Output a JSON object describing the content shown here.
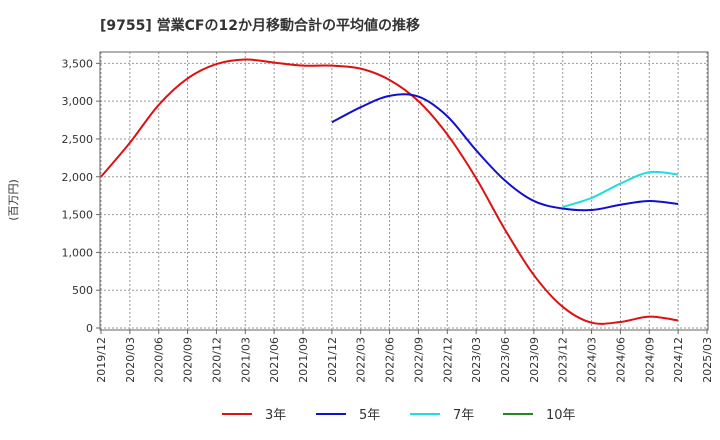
{
  "chart_data": {
    "type": "line",
    "title": "[9755]  営業CFの12か月移動合計の平均値の推移",
    "ylabel": "(百万円)",
    "xlabel": "",
    "ylim": [
      0,
      3650
    ],
    "yticks": [
      0,
      500,
      1000,
      1500,
      2000,
      2500,
      3000,
      3500
    ],
    "ytick_labels": [
      "0",
      "500",
      "1,000",
      "1,500",
      "2,000",
      "2,500",
      "3,000",
      "3,500"
    ],
    "x_categories": [
      "2019/12",
      "2020/03",
      "2020/06",
      "2020/09",
      "2020/12",
      "2021/03",
      "2021/06",
      "2021/09",
      "2021/12",
      "2022/03",
      "2022/06",
      "2022/09",
      "2022/12",
      "2023/03",
      "2023/06",
      "2023/09",
      "2023/12",
      "2024/03",
      "2024/06",
      "2024/09",
      "2024/12",
      "2025/03"
    ],
    "grid": true,
    "legend_position": "bottom",
    "series": [
      {
        "name": "3年",
        "color": "#dd1111",
        "x": [
          "2019/12",
          "2020/03",
          "2020/06",
          "2020/09",
          "2020/12",
          "2021/03",
          "2021/06",
          "2021/09",
          "2021/12",
          "2022/03",
          "2022/06",
          "2022/09",
          "2022/12",
          "2023/03",
          "2023/06",
          "2023/09",
          "2023/12",
          "2024/03",
          "2024/06",
          "2024/09",
          "2024/12"
        ],
        "values": [
          2000,
          2450,
          2950,
          3300,
          3490,
          3550,
          3510,
          3470,
          3470,
          3430,
          3280,
          3000,
          2560,
          1980,
          1300,
          700,
          280,
          70,
          80,
          150,
          100
        ]
      },
      {
        "name": "5年",
        "color": "#1111cc",
        "x": [
          "2021/12",
          "2022/03",
          "2022/06",
          "2022/09",
          "2022/12",
          "2023/03",
          "2023/06",
          "2023/09",
          "2023/12",
          "2024/03",
          "2024/06",
          "2024/09",
          "2024/12"
        ],
        "values": [
          2720,
          2920,
          3070,
          3060,
          2800,
          2350,
          1950,
          1680,
          1580,
          1560,
          1630,
          1680,
          1640
        ]
      },
      {
        "name": "7年",
        "color": "#22dddd",
        "x": [
          "2023/12",
          "2024/03",
          "2024/06",
          "2024/09",
          "2024/12"
        ],
        "values": [
          1600,
          1720,
          1910,
          2060,
          2030
        ]
      },
      {
        "name": "10年",
        "color": "#228822",
        "x": [],
        "values": []
      }
    ]
  }
}
